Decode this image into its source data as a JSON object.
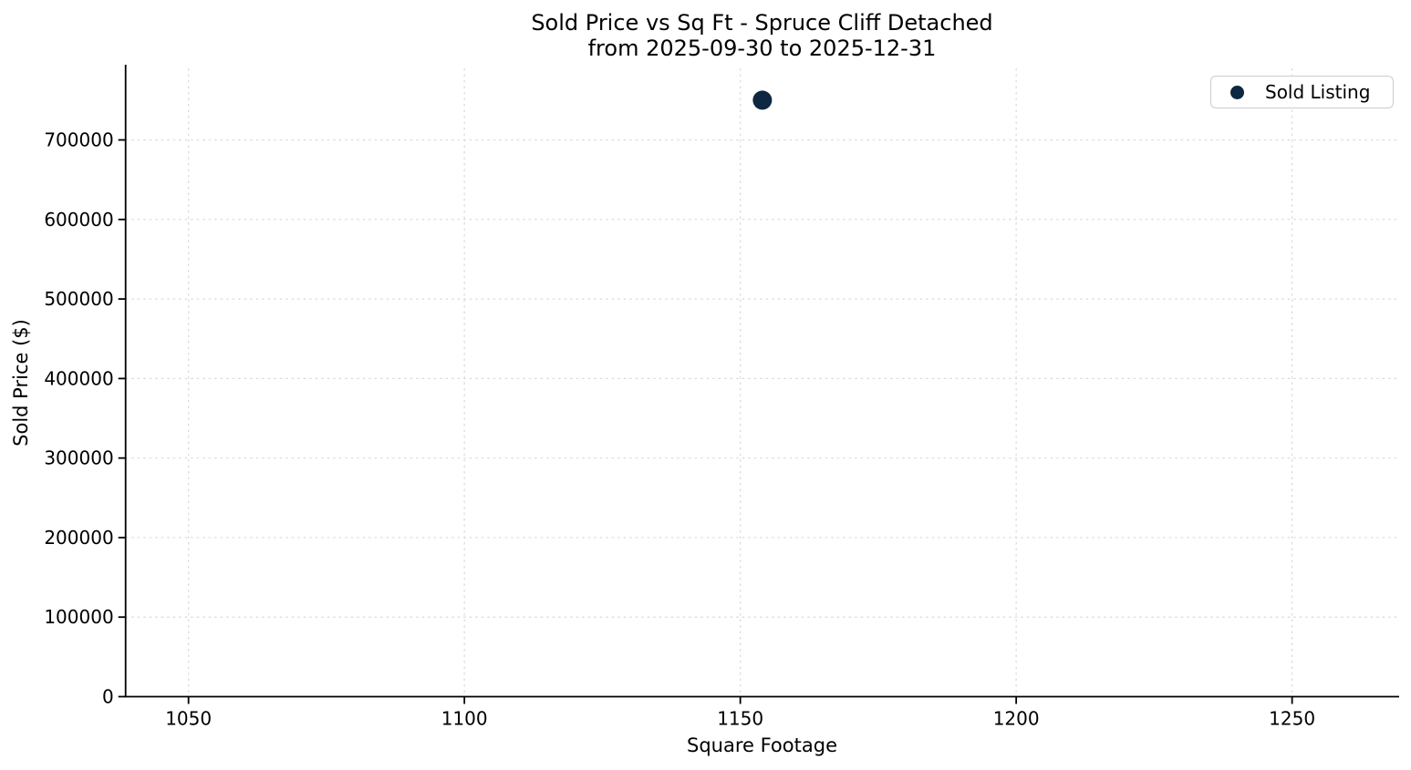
{
  "chart_data": {
    "type": "scatter",
    "title": "Sold Price vs Sq Ft - Spruce Cliff Detached",
    "subtitle": "from 2025-09-30 to 2025-12-31",
    "xlabel": "Square Footage",
    "ylabel": "Sold Price ($)",
    "xlim": [
      1038.6,
      1269.4
    ],
    "ylim": [
      0,
      790000
    ],
    "x_ticks": [
      1050,
      1100,
      1150,
      1200,
      1250
    ],
    "y_ticks": [
      0,
      100000,
      200000,
      300000,
      400000,
      500000,
      600000,
      700000
    ],
    "grid": true,
    "grid_style": "dashed",
    "series": [
      {
        "name": "Sold Listing",
        "color": "#0d2840",
        "x": [
          1154
        ],
        "y": [
          750000
        ]
      }
    ],
    "legend": {
      "position": "upper right",
      "entries": [
        {
          "label": "Sold Listing",
          "marker": "circle",
          "marker_color": "#0d2840"
        }
      ]
    },
    "colors": {
      "spine": "#000000",
      "grid": "#d9d9d9",
      "text": "#000000",
      "legend_border": "#cccccc"
    }
  }
}
